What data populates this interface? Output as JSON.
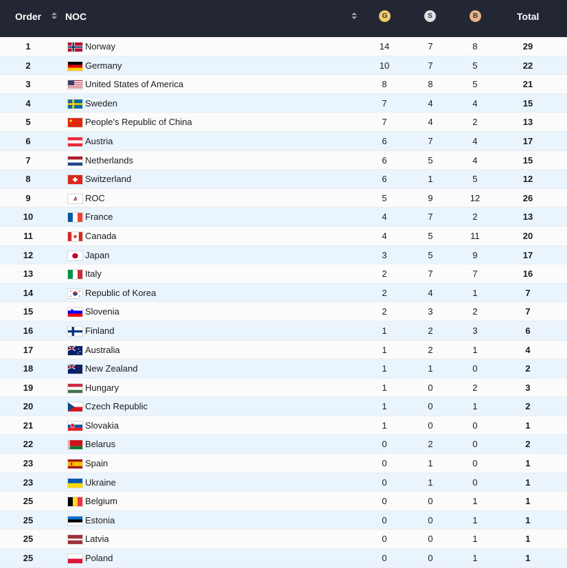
{
  "header": {
    "order": "Order",
    "noc": "NOC",
    "gold": "G",
    "silver": "S",
    "bronze": "B",
    "total": "Total"
  },
  "rows": [
    {
      "rank": "1",
      "noc": "Norway",
      "flag": "no",
      "gold": "14",
      "silver": "7",
      "bronze": "8",
      "total": "29"
    },
    {
      "rank": "2",
      "noc": "Germany",
      "flag": "de",
      "gold": "10",
      "silver": "7",
      "bronze": "5",
      "total": "22"
    },
    {
      "rank": "3",
      "noc": "United States of America",
      "flag": "us",
      "gold": "8",
      "silver": "8",
      "bronze": "5",
      "total": "21"
    },
    {
      "rank": "4",
      "noc": "Sweden",
      "flag": "se",
      "gold": "7",
      "silver": "4",
      "bronze": "4",
      "total": "15"
    },
    {
      "rank": "5",
      "noc": "People's Republic of China",
      "flag": "cn",
      "gold": "7",
      "silver": "4",
      "bronze": "2",
      "total": "13"
    },
    {
      "rank": "6",
      "noc": "Austria",
      "flag": "at",
      "gold": "6",
      "silver": "7",
      "bronze": "4",
      "total": "17"
    },
    {
      "rank": "7",
      "noc": "Netherlands",
      "flag": "nl",
      "gold": "6",
      "silver": "5",
      "bronze": "4",
      "total": "15"
    },
    {
      "rank": "8",
      "noc": "Switzerland",
      "flag": "ch",
      "gold": "6",
      "silver": "1",
      "bronze": "5",
      "total": "12"
    },
    {
      "rank": "9",
      "noc": "ROC",
      "flag": "roc",
      "gold": "5",
      "silver": "9",
      "bronze": "12",
      "total": "26"
    },
    {
      "rank": "10",
      "noc": "France",
      "flag": "fr",
      "gold": "4",
      "silver": "7",
      "bronze": "2",
      "total": "13"
    },
    {
      "rank": "11",
      "noc": "Canada",
      "flag": "ca",
      "gold": "4",
      "silver": "5",
      "bronze": "11",
      "total": "20"
    },
    {
      "rank": "12",
      "noc": "Japan",
      "flag": "jp",
      "gold": "3",
      "silver": "5",
      "bronze": "9",
      "total": "17"
    },
    {
      "rank": "13",
      "noc": "Italy",
      "flag": "it",
      "gold": "2",
      "silver": "7",
      "bronze": "7",
      "total": "16"
    },
    {
      "rank": "14",
      "noc": "Republic of Korea",
      "flag": "kr",
      "gold": "2",
      "silver": "4",
      "bronze": "1",
      "total": "7"
    },
    {
      "rank": "15",
      "noc": "Slovenia",
      "flag": "si",
      "gold": "2",
      "silver": "3",
      "bronze": "2",
      "total": "7"
    },
    {
      "rank": "16",
      "noc": "Finland",
      "flag": "fi",
      "gold": "1",
      "silver": "2",
      "bronze": "3",
      "total": "6"
    },
    {
      "rank": "17",
      "noc": "Australia",
      "flag": "au",
      "gold": "1",
      "silver": "2",
      "bronze": "1",
      "total": "4"
    },
    {
      "rank": "18",
      "noc": "New Zealand",
      "flag": "nz",
      "gold": "1",
      "silver": "1",
      "bronze": "0",
      "total": "2"
    },
    {
      "rank": "19",
      "noc": "Hungary",
      "flag": "hu",
      "gold": "1",
      "silver": "0",
      "bronze": "2",
      "total": "3"
    },
    {
      "rank": "20",
      "noc": "Czech Republic",
      "flag": "cz",
      "gold": "1",
      "silver": "0",
      "bronze": "1",
      "total": "2"
    },
    {
      "rank": "21",
      "noc": "Slovakia",
      "flag": "sk",
      "gold": "1",
      "silver": "0",
      "bronze": "0",
      "total": "1"
    },
    {
      "rank": "22",
      "noc": "Belarus",
      "flag": "by",
      "gold": "0",
      "silver": "2",
      "bronze": "0",
      "total": "2"
    },
    {
      "rank": "23",
      "noc": "Spain",
      "flag": "es",
      "gold": "0",
      "silver": "1",
      "bronze": "0",
      "total": "1"
    },
    {
      "rank": "23",
      "noc": "Ukraine",
      "flag": "ua",
      "gold": "0",
      "silver": "1",
      "bronze": "0",
      "total": "1"
    },
    {
      "rank": "25",
      "noc": "Belgium",
      "flag": "be",
      "gold": "0",
      "silver": "0",
      "bronze": "1",
      "total": "1"
    },
    {
      "rank": "25",
      "noc": "Estonia",
      "flag": "ee",
      "gold": "0",
      "silver": "0",
      "bronze": "1",
      "total": "1"
    },
    {
      "rank": "25",
      "noc": "Latvia",
      "flag": "lv",
      "gold": "0",
      "silver": "0",
      "bronze": "1",
      "total": "1"
    },
    {
      "rank": "25",
      "noc": "Poland",
      "flag": "pl",
      "gold": "0",
      "silver": "0",
      "bronze": "1",
      "total": "1"
    }
  ],
  "colors": {
    "header_bg": "#222733",
    "row_odd": "#fbfbfb",
    "row_even": "#eaf4fc",
    "gold": "#f2c96b",
    "silver": "#dfe1e5",
    "bronze": "#e7b48c"
  }
}
